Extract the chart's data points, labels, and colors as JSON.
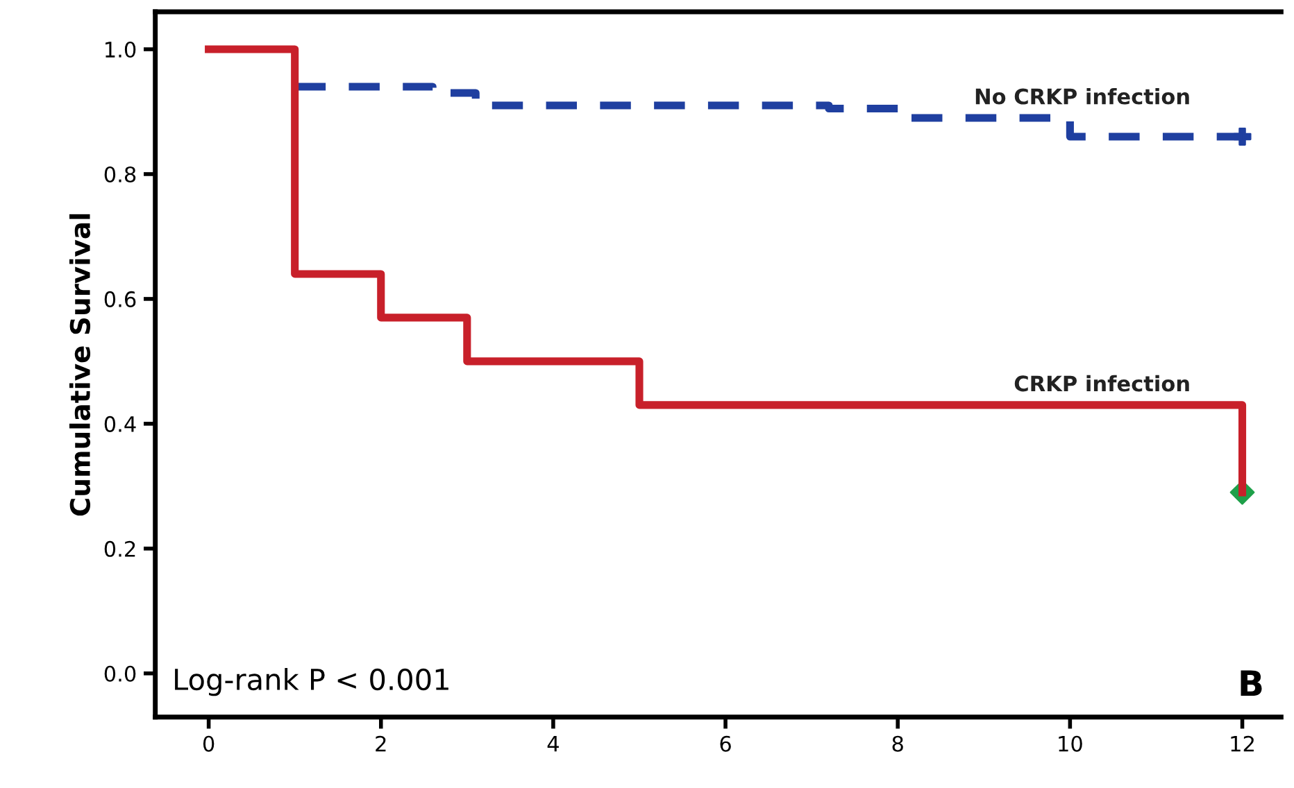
{
  "chart_data": {
    "type": "step",
    "ylabel": "Cumulative Survival",
    "series": [
      {
        "name": "No CRKP infection",
        "color": "#1f3fa0",
        "line_style": "dashed",
        "x": [
          1,
          2.6,
          3.1,
          7.2,
          8.1,
          10,
          12
        ],
        "values": [
          0.94,
          0.93,
          0.91,
          0.905,
          0.89,
          0.86,
          0.86
        ]
      },
      {
        "name": "CRKP infection",
        "color": "#c8202a",
        "line_style": "solid",
        "x": [
          0,
          1,
          2,
          3,
          5,
          12
        ],
        "values": [
          1.0,
          0.64,
          0.57,
          0.5,
          0.43,
          0.29
        ]
      },
      {
        "type": "scatter",
        "color": "#1f3fa0",
        "marker": "cross",
        "x": [
          12
        ],
        "values": [
          0.86
        ]
      },
      {
        "type": "scatter",
        "color": "#1fa04a",
        "marker": "diamond",
        "x": [
          12
        ],
        "values": [
          0.29
        ]
      }
    ],
    "xlim": [
      -0.62,
      12.45
    ],
    "ylim": [
      -0.07,
      1.06
    ],
    "xticks": [
      0,
      2,
      4,
      6,
      8,
      10,
      12
    ],
    "yticks": [
      {
        "value": 0,
        "label": "0.0"
      },
      0.2,
      0.4,
      0.6,
      0.8,
      {
        "value": 1,
        "label": "1.0"
      }
    ],
    "annotations": [
      "Log-rank P < 0.001",
      "B"
    ],
    "grid": false,
    "legend": false
  }
}
